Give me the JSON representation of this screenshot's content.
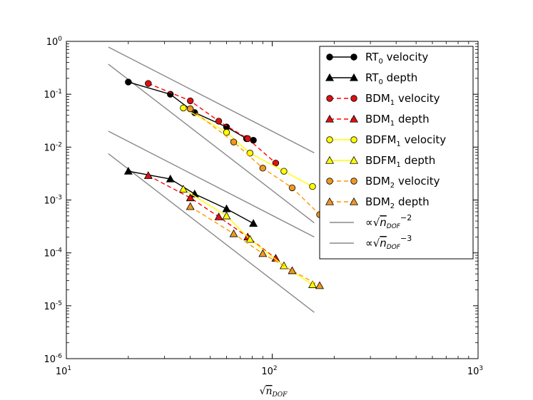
{
  "chart_data": {
    "type": "line",
    "xscale": "log",
    "yscale": "log",
    "xlim": [
      10,
      1000
    ],
    "ylim": [
      1e-06,
      1
    ],
    "xlabel": {
      "prefix": "√",
      "main": "n",
      "sub": "DOF"
    },
    "x_ticks": [
      {
        "value": 10,
        "base": "10",
        "exp": "1"
      },
      {
        "value": 100,
        "base": "10",
        "exp": "2"
      },
      {
        "value": 1000,
        "base": "10",
        "exp": "3"
      }
    ],
    "y_ticks": [
      {
        "value": 1e-06,
        "base": "10",
        "exp": "-6"
      },
      {
        "value": 1e-05,
        "base": "10",
        "exp": "-5"
      },
      {
        "value": 0.0001,
        "base": "10",
        "exp": "-4"
      },
      {
        "value": 0.001,
        "base": "10",
        "exp": "-3"
      },
      {
        "value": 0.01,
        "base": "10",
        "exp": "-2"
      },
      {
        "value": 0.1,
        "base": "10",
        "exp": "-1"
      },
      {
        "value": 1,
        "base": "10",
        "exp": "0"
      }
    ],
    "legend_position": "top-right",
    "series": [
      {
        "id": "rt0-velocity",
        "label_main": "RT",
        "label_sub": "0",
        "label_rest": "velocity",
        "color": "#000000",
        "marker": "circle",
        "marker_fill": "#000000",
        "dash": false,
        "x": [
          20,
          32,
          42,
          60,
          75,
          81
        ],
        "y": [
          0.17,
          0.1,
          0.045,
          0.024,
          0.0145,
          0.0135
        ]
      },
      {
        "id": "rt0-depth",
        "label_main": "RT",
        "label_sub": "0",
        "label_rest": "depth",
        "color": "#000000",
        "marker": "triangle",
        "marker_fill": "#000000",
        "dash": false,
        "x": [
          20,
          32,
          42,
          60,
          81
        ],
        "y": [
          0.0035,
          0.0025,
          0.0013,
          0.00068,
          0.00036
        ]
      },
      {
        "id": "bdm1-velocity",
        "label_main": "BDM",
        "label_sub": "1",
        "label_rest": "velocity",
        "color": "#ff0000",
        "marker": "circle",
        "marker_fill": "#dd1111",
        "dash": true,
        "x": [
          25,
          40,
          55,
          76,
          104
        ],
        "y": [
          0.16,
          0.075,
          0.031,
          0.0145,
          0.005
        ]
      },
      {
        "id": "bdm1-depth",
        "label_main": "BDM",
        "label_sub": "1",
        "label_rest": "depth",
        "color": "#ff0000",
        "marker": "triangle",
        "marker_fill": "#dd1111",
        "dash": true,
        "x": [
          25,
          40,
          55,
          76,
          104
        ],
        "y": [
          0.0029,
          0.0011,
          0.00048,
          0.0002,
          7.9e-05
        ]
      },
      {
        "id": "bdfm1-velocity",
        "label_main": "BDFM",
        "label_sub": "1",
        "label_rest": "velocity",
        "color": "#ffff00",
        "marker": "circle",
        "marker_fill": "#ffff00",
        "dash": false,
        "x": [
          37,
          60,
          78,
          114,
          157
        ],
        "y": [
          0.055,
          0.019,
          0.0077,
          0.0035,
          0.0018
        ]
      },
      {
        "id": "bdfm1-depth",
        "label_main": "BDFM",
        "label_sub": "1",
        "label_rest": "depth",
        "color": "#ffff00",
        "marker": "triangle",
        "marker_fill": "#ffff00",
        "dash": false,
        "x": [
          37,
          60,
          78,
          114,
          157
        ],
        "y": [
          0.0016,
          0.0005,
          0.00018,
          5.7e-05,
          2.5e-05
        ]
      },
      {
        "id": "bdm2-velocity",
        "label_main": "BDM",
        "label_sub": "2",
        "label_rest": "velocity",
        "color": "#ff9900",
        "marker": "circle",
        "marker_fill": "#ee9922",
        "dash": true,
        "x": [
          40,
          65,
          90,
          125,
          170
        ],
        "y": [
          0.053,
          0.0125,
          0.004,
          0.0017,
          0.00053
        ]
      },
      {
        "id": "bdm2-depth",
        "label_main": "BDM",
        "label_sub": "2",
        "label_rest": "depth",
        "color": "#ff9900",
        "marker": "triangle",
        "marker_fill": "#ee9922",
        "dash": true,
        "x": [
          40,
          65,
          90,
          125,
          170
        ],
        "y": [
          0.00075,
          0.00023,
          9.7e-05,
          4.6e-05,
          2.4e-05
        ]
      }
    ],
    "reference_lines": [
      {
        "id": "ref-slope2-upper",
        "slope": -2,
        "x": [
          16,
          160
        ],
        "y": [
          0.78,
          0.0078
        ]
      },
      {
        "id": "ref-slope3-upper",
        "slope": -3,
        "x": [
          16,
          160
        ],
        "y": [
          0.37,
          0.00037
        ]
      },
      {
        "id": "ref-slope2-lower",
        "slope": -2,
        "x": [
          16,
          160
        ],
        "y": [
          0.02,
          0.0002
        ]
      },
      {
        "id": "ref-slope3-lower",
        "slope": -3,
        "x": [
          16,
          160
        ],
        "y": [
          0.0075,
          7.5e-06
        ]
      }
    ],
    "reference_legend": [
      {
        "id": "ref-slope-2",
        "prefix": "∝√",
        "main": "n",
        "sub": "DOF",
        "exp": "−2",
        "color": "#888888"
      },
      {
        "id": "ref-slope-3",
        "prefix": "∝√",
        "main": "n",
        "sub": "DOF",
        "exp": "−3",
        "color": "#888888"
      }
    ]
  }
}
